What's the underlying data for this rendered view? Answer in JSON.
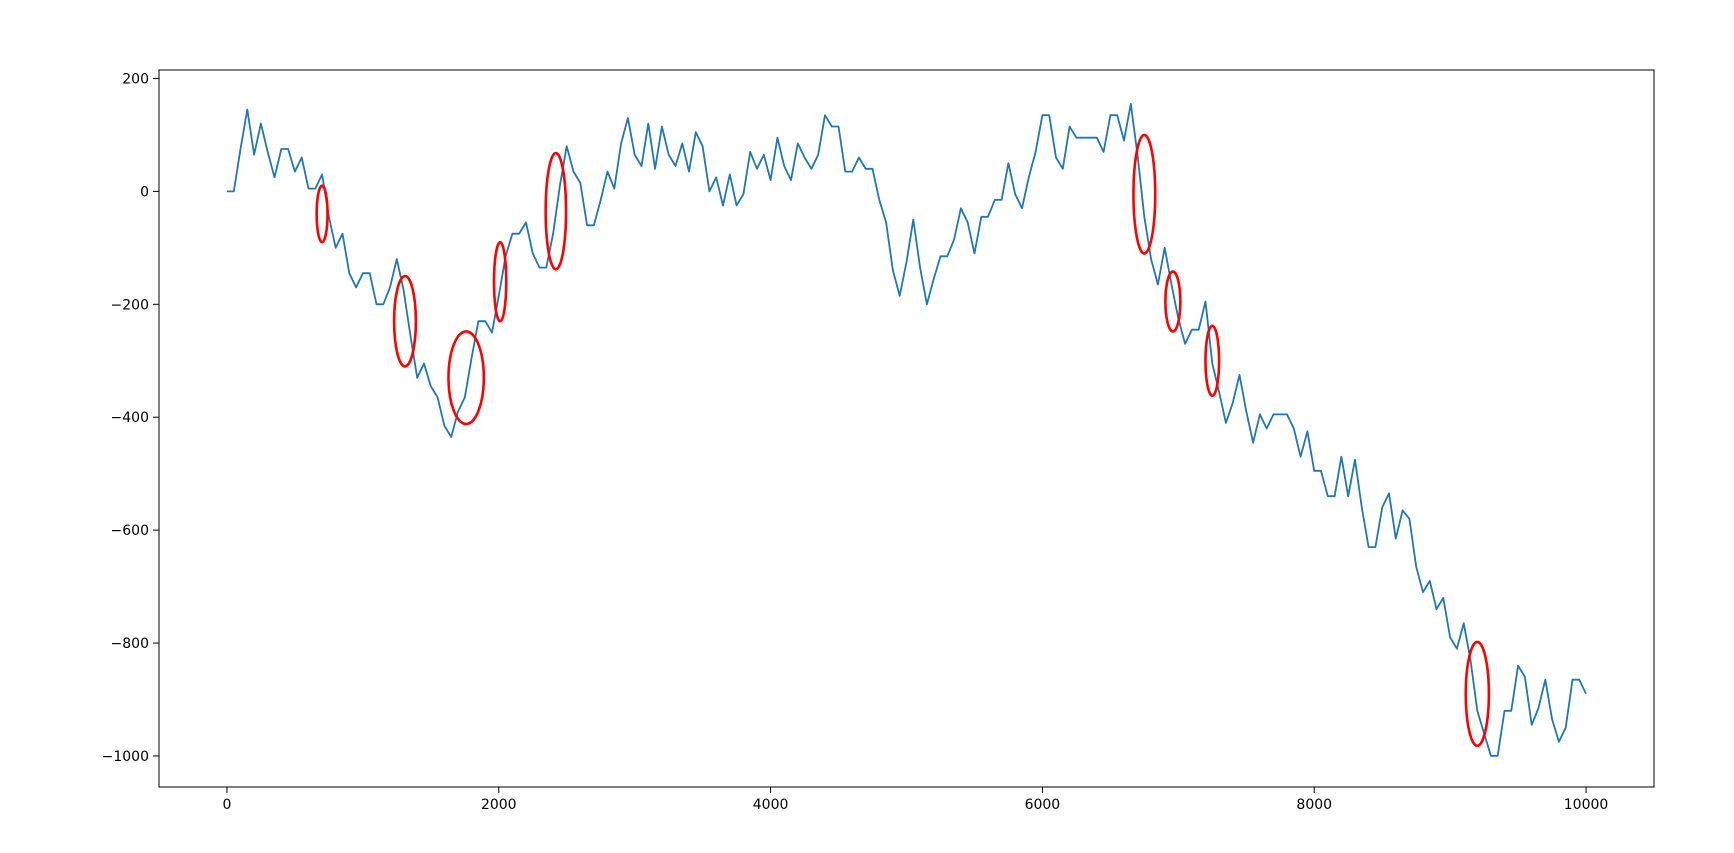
{
  "chart_data": {
    "type": "line",
    "title": "",
    "xlabel": "",
    "ylabel": "",
    "xlim": [
      -500,
      10500
    ],
    "ylim": [
      -1055,
      215
    ],
    "grid": false,
    "xticks": [
      0,
      2000,
      4000,
      6000,
      8000,
      10000
    ],
    "xtick_labels": [
      "0",
      "2000",
      "4000",
      "6000",
      "8000",
      "10000"
    ],
    "yticks": [
      200,
      0,
      -200,
      -400,
      -600,
      -800,
      -1000
    ],
    "ytick_labels": [
      "200",
      "0",
      "−200",
      "−400",
      "−600",
      "−800",
      "−1000"
    ],
    "colors": {
      "line": "#1f77b4",
      "highlight": "#ff0000"
    },
    "series": [
      {
        "x": [
          0,
          50,
          100,
          150,
          200,
          250,
          300,
          350,
          400,
          450,
          500,
          550,
          600,
          650,
          700,
          750,
          800,
          850,
          900,
          950,
          1000,
          1050,
          1100,
          1150,
          1200,
          1250,
          1300,
          1350,
          1400,
          1450,
          1500,
          1550,
          1600,
          1650,
          1700,
          1750,
          1800,
          1850,
          1900,
          1950,
          2000,
          2050,
          2100,
          2150,
          2200,
          2250,
          2300,
          2350,
          2400,
          2450,
          2500,
          2550,
          2600,
          2650,
          2700,
          2750,
          2800,
          2850,
          2900,
          2950,
          3000,
          3050,
          3100,
          3150,
          3200,
          3250,
          3300,
          3350,
          3400,
          3450,
          3500,
          3550,
          3600,
          3650,
          3700,
          3750,
          3800,
          3850,
          3900,
          3950,
          4000,
          4050,
          4100,
          4150,
          4200,
          4250,
          4300,
          4350,
          4400,
          4450,
          4500,
          4550,
          4600,
          4650,
          4700,
          4750,
          4800,
          4850,
          4900,
          4950,
          5000,
          5050,
          5100,
          5150,
          5200,
          5250,
          5300,
          5350,
          5400,
          5450,
          5500,
          5550,
          5600,
          5650,
          5700,
          5750,
          5800,
          5850,
          5900,
          5950,
          6000,
          6050,
          6100,
          6150,
          6200,
          6250,
          6300,
          6350,
          6400,
          6450,
          6500,
          6550,
          6600,
          6650,
          6700,
          6750,
          6800,
          6850,
          6900,
          6950,
          7000,
          7050,
          7100,
          7150,
          7200,
          7250,
          7300,
          7350,
          7400,
          7450,
          7500,
          7550,
          7600,
          7650,
          7700,
          7750,
          7800,
          7850,
          7900,
          7950,
          8000,
          8050,
          8100,
          8150,
          8200,
          8250,
          8300,
          8350,
          8400,
          8450,
          8500,
          8550,
          8600,
          8650,
          8700,
          8750,
          8800,
          8850,
          8900,
          8950,
          9000,
          9050,
          9100,
          9150,
          9200,
          9250,
          9300,
          9350,
          9400,
          9450,
          9500,
          9550,
          9600,
          9650,
          9700,
          9750,
          9800,
          9850,
          9900,
          9950,
          10000
        ],
        "y": [
          0,
          0,
          75,
          145,
          65,
          120,
          70,
          25,
          75,
          75,
          35,
          60,
          5,
          5,
          30,
          -45,
          -100,
          -75,
          -145,
          -170,
          -145,
          -145,
          -200,
          -200,
          -170,
          -120,
          -175,
          -255,
          -330,
          -305,
          -345,
          -365,
          -415,
          -435,
          -390,
          -365,
          -295,
          -230,
          -230,
          -250,
          -185,
          -115,
          -75,
          -75,
          -55,
          -110,
          -135,
          -135,
          -75,
          10,
          80,
          35,
          15,
          -60,
          -60,
          -15,
          35,
          5,
          85,
          130,
          65,
          45,
          120,
          40,
          115,
          65,
          45,
          85,
          35,
          105,
          80,
          0,
          25,
          -25,
          30,
          -25,
          -5,
          70,
          40,
          65,
          20,
          95,
          45,
          20,
          85,
          60,
          40,
          65,
          135,
          115,
          115,
          35,
          35,
          60,
          40,
          40,
          -15,
          -55,
          -140,
          -185,
          -125,
          -50,
          -135,
          -200,
          -155,
          -115,
          -115,
          -85,
          -30,
          -55,
          -110,
          -45,
          -45,
          -15,
          -15,
          50,
          -5,
          -30,
          25,
          70,
          135,
          135,
          60,
          40,
          115,
          95,
          95,
          95,
          95,
          70,
          135,
          135,
          90,
          155,
          65,
          -45,
          -120,
          -165,
          -100,
          -165,
          -225,
          -270,
          -245,
          -245,
          -195,
          -305,
          -355,
          -410,
          -375,
          -325,
          -390,
          -445,
          -395,
          -420,
          -395,
          -395,
          -395,
          -420,
          -470,
          -425,
          -495,
          -495,
          -540,
          -540,
          -470,
          -540,
          -475,
          -560,
          -630,
          -630,
          -560,
          -535,
          -615,
          -565,
          -580,
          -665,
          -710,
          -690,
          -740,
          -720,
          -790,
          -810,
          -765,
          -830,
          -920,
          -960,
          -1000,
          -1000,
          -920,
          -920,
          -840,
          -860,
          -945,
          -915,
          -865,
          -935,
          -975,
          -950,
          -865,
          -865,
          -890
        ]
      }
    ],
    "highlights": [
      {
        "x": 700,
        "y": -40,
        "rx": 40,
        "ry": 50
      },
      {
        "x": 1310,
        "y": -230,
        "rx": 80,
        "ry": 80
      },
      {
        "x": 1760,
        "y": -330,
        "rx": 130,
        "ry": 82
      },
      {
        "x": 2010,
        "y": -160,
        "rx": 45,
        "ry": 70
      },
      {
        "x": 2420,
        "y": -35,
        "rx": 75,
        "ry": 103
      },
      {
        "x": 6750,
        "y": -5,
        "rx": 80,
        "ry": 105
      },
      {
        "x": 6960,
        "y": -195,
        "rx": 55,
        "ry": 53
      },
      {
        "x": 7250,
        "y": -300,
        "rx": 50,
        "ry": 62
      },
      {
        "x": 9200,
        "y": -890,
        "rx": 85,
        "ry": 92
      }
    ]
  }
}
